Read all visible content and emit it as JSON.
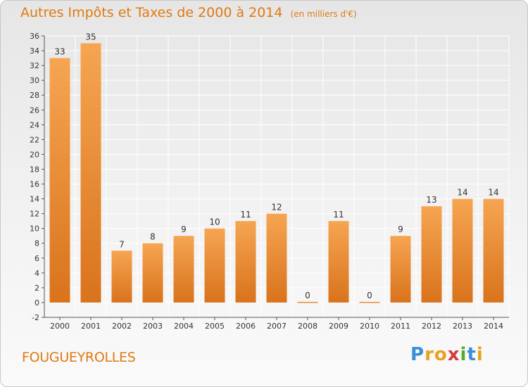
{
  "header": {
    "title": "Autres Impôts et Taxes de 2000 à 2014",
    "unit": "(en milliers d'€)"
  },
  "footer": {
    "commune": "FOUGUEYROLLES"
  },
  "logo": {
    "letters": [
      "P",
      "r",
      "o",
      "x",
      "i",
      "t",
      "i"
    ],
    "colors": [
      "#3a8fd6",
      "#e8a21c",
      "#e8a21c",
      "#d63a3a",
      "#5aa832",
      "#3a8fd6",
      "#e8a21c"
    ]
  },
  "colors": {
    "bar_top": "#f6a552",
    "bar_bottom": "#d9731c",
    "grid": "#ffffff",
    "axis_text": "#333333",
    "accent": "#e07a10"
  },
  "chart_data": {
    "type": "bar",
    "title": "Autres Impôts et Taxes de 2000 à 2014",
    "subtitle": "(en milliers d'€)",
    "xlabel": "",
    "ylabel": "",
    "categories": [
      "2000",
      "2001",
      "2002",
      "2003",
      "2004",
      "2005",
      "2006",
      "2007",
      "2008",
      "2009",
      "2010",
      "2011",
      "2012",
      "2013",
      "2014"
    ],
    "values": [
      33,
      35,
      7,
      8,
      9,
      10,
      11,
      12,
      0,
      11,
      0,
      9,
      13,
      14,
      14
    ],
    "ylim": [
      -2,
      36
    ],
    "yticks": [
      -2,
      0,
      2,
      4,
      6,
      8,
      10,
      12,
      14,
      16,
      18,
      20,
      22,
      24,
      26,
      28,
      30,
      32,
      34,
      36
    ],
    "grid": true,
    "legend": "none"
  }
}
